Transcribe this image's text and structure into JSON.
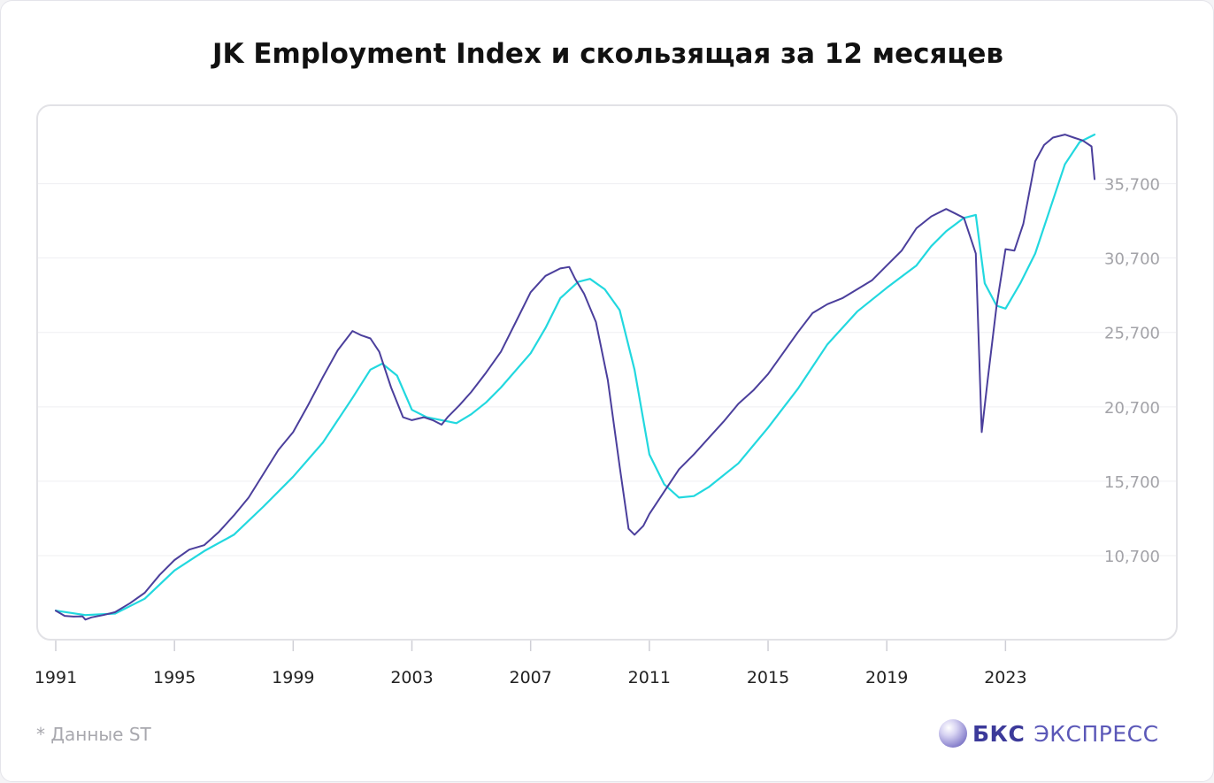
{
  "header": {
    "title": "JK Employment Index и скользящая за 12 месяцев"
  },
  "footer": {
    "note": "* Данные ST",
    "brand_name": "БКС",
    "brand_sub": "ЭКСПРЕСС"
  },
  "colors": {
    "index_line": "#4b3f9c",
    "moving_average": "#22d8df",
    "grid": "#efeff2",
    "tick_text": "#a3a3a8",
    "axis_text": "#222222"
  },
  "chart_data": {
    "type": "line",
    "title": "JK Employment Index и скользящая за 12 месяцев",
    "xlabel": "",
    "ylabel": "",
    "x_ticks": [
      "1991",
      "1995",
      "1999",
      "2003",
      "2007",
      "2011",
      "2015",
      "2019",
      "2023"
    ],
    "y_ticks": [
      "10,700",
      "15,700",
      "20,700",
      "25,700",
      "30,700",
      "35,700"
    ],
    "xlim": [
      1991,
      2026
    ],
    "ylim": [
      6000,
      39600
    ],
    "y_axis_position": "right",
    "grid": true,
    "legend": "none",
    "series": [
      {
        "x": [
          1991.0,
          1991.3,
          1991.6,
          1991.9,
          1992.0,
          1992.2,
          1992.6,
          1993.0,
          1993.5,
          1994.0,
          1994.5,
          1995.0,
          1995.5,
          1996.0,
          1996.5,
          1997.0,
          1997.5,
          1998.0,
          1998.5,
          1999.0,
          1999.5,
          2000.0,
          2000.5,
          2001.0,
          2001.3,
          2001.6,
          2001.9,
          2002.3,
          2002.7,
          2003.0,
          2003.4,
          2003.7,
          2004.0,
          2004.2,
          2004.6,
          2005.0,
          2005.5,
          2006.0,
          2006.5,
          2007.0,
          2007.5,
          2008.0,
          2008.3,
          2008.5,
          2008.8,
          2009.2,
          2009.6,
          2010.0,
          2010.3,
          2010.5,
          2010.8,
          2011.0,
          2011.5,
          2012.0,
          2012.5,
          2013.0,
          2013.5,
          2014.0,
          2014.5,
          2015.0,
          2015.5,
          2016.0,
          2016.5,
          2017.0,
          2017.5,
          2018.0,
          2018.5,
          2019.0,
          2019.5,
          2020.0,
          2020.5,
          2021.0,
          2021.3,
          2021.6,
          2022.0,
          2022.2,
          2022.4,
          2022.7,
          2023.0,
          2023.3,
          2023.6,
          2024.0,
          2024.3,
          2024.6,
          2025.0,
          2025.3,
          2025.6,
          2025.9,
          2026.0
        ],
        "values": [
          7000,
          6650,
          6600,
          6620,
          6400,
          6550,
          6700,
          6900,
          7500,
          8200,
          9400,
          10400,
          11100,
          11400,
          12300,
          13400,
          14600,
          16200,
          17800,
          19000,
          20800,
          22700,
          24500,
          25800,
          25500,
          25300,
          24400,
          22000,
          20000,
          19800,
          20000,
          19800,
          19500,
          20000,
          20800,
          21700,
          23000,
          24400,
          26400,
          28400,
          29500,
          30000,
          30100,
          29300,
          28300,
          26400,
          22500,
          16700,
          12500,
          12100,
          12700,
          13500,
          15000,
          16500,
          17500,
          18600,
          19700,
          20900,
          21800,
          22900,
          24300,
          25700,
          27000,
          27600,
          28000,
          28600,
          29200,
          30200,
          31200,
          32700,
          33500,
          34000,
          33700,
          33400,
          31000,
          19000,
          22500,
          27500,
          31300,
          31200,
          33000,
          37200,
          38300,
          38800,
          39000,
          38800,
          38600,
          38200,
          36000
        ]
      },
      {
        "x": [
          1991.0,
          1992.0,
          1993.0,
          1994.0,
          1995.0,
          1996.0,
          1997.0,
          1998.0,
          1999.0,
          2000.0,
          2001.0,
          2001.6,
          2002.0,
          2002.5,
          2003.0,
          2003.5,
          2004.0,
          2004.5,
          2005.0,
          2005.5,
          2006.0,
          2007.0,
          2007.5,
          2008.0,
          2008.6,
          2009.0,
          2009.5,
          2010.0,
          2010.5,
          2011.0,
          2011.5,
          2012.0,
          2012.5,
          2013.0,
          2014.0,
          2015.0,
          2016.0,
          2017.0,
          2018.0,
          2019.0,
          2020.0,
          2020.5,
          2021.0,
          2021.6,
          2022.0,
          2022.3,
          2022.7,
          2023.0,
          2023.5,
          2024.0,
          2024.5,
          2025.0,
          2025.5,
          2026.0
        ],
        "values": [
          7000,
          6700,
          6800,
          7800,
          9700,
          11000,
          12100,
          14000,
          16000,
          18300,
          21300,
          23200,
          23600,
          22800,
          20500,
          20000,
          19800,
          19600,
          20200,
          21000,
          22000,
          24300,
          26000,
          28000,
          29100,
          29300,
          28600,
          27200,
          23200,
          17500,
          15500,
          14600,
          14700,
          15300,
          16900,
          19300,
          21900,
          24900,
          27100,
          28700,
          30200,
          31500,
          32500,
          33400,
          33600,
          29000,
          27500,
          27300,
          29000,
          31000,
          34000,
          37000,
          38500,
          39000
        ]
      }
    ]
  }
}
